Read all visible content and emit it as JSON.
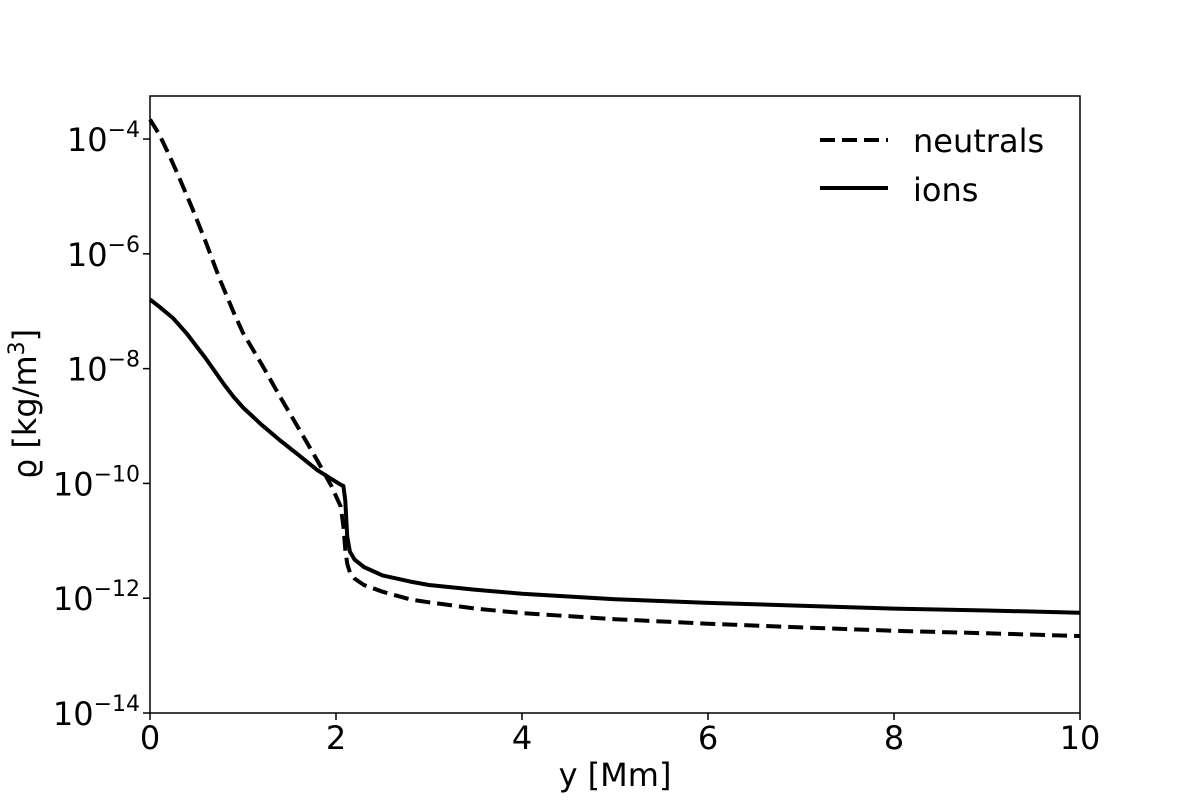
{
  "chart_data": {
    "type": "line",
    "xlabel": "y [Mm]",
    "ylabel_main": "ϱ [kg/m",
    "ylabel_sup": "3",
    "ylabel_close": "]",
    "xlim": [
      0,
      10
    ],
    "ylim_log10": [
      -14,
      -3.25
    ],
    "yscale": "log",
    "grid": false,
    "legend_placement": "top-right",
    "x_ticks": [
      "0",
      "2",
      "4",
      "6",
      "8",
      "10"
    ],
    "y_ticks": [
      {
        "base": "10",
        "exp": "−14",
        "value": -14
      },
      {
        "base": "10",
        "exp": "−12",
        "value": -12
      },
      {
        "base": "10",
        "exp": "−10",
        "value": -10
      },
      {
        "base": "10",
        "exp": "−8",
        "value": -8
      },
      {
        "base": "10",
        "exp": "−6",
        "value": -6
      },
      {
        "base": "10",
        "exp": "−4",
        "value": -4
      }
    ],
    "series": [
      {
        "name": "neutrals",
        "style": "dashed",
        "color": "#000000",
        "x": [
          0,
          0.1,
          0.2,
          0.3,
          0.45,
          0.6,
          0.75,
          0.9,
          1.0,
          1.2,
          1.4,
          1.6,
          1.8,
          1.95,
          2.05,
          2.08,
          2.1,
          2.12,
          2.15,
          2.2,
          2.3,
          2.5,
          2.8,
          3.0,
          3.5,
          4.0,
          5.0,
          6.0,
          7.0,
          8.0,
          9.0,
          10.0
        ],
        "y": [
          0.00022,
          0.00012,
          5.5e-05,
          2.4e-05,
          6.5e-06,
          1.6e-06,
          3.6e-07,
          9.5e-08,
          4.2e-08,
          1.2e-08,
          3.2e-09,
          9e-10,
          2.5e-10,
          9e-11,
          4e-11,
          1.8e-11,
          7e-12,
          4e-12,
          2.8e-12,
          2.2e-12,
          1.7e-12,
          1.3e-12,
          9.5e-13,
          8.5e-13,
          6.6e-13,
          5.5e-13,
          4.3e-13,
          3.6e-13,
          3.1e-13,
          2.7e-13,
          2.45e-13,
          2.2e-13
        ]
      },
      {
        "name": "ions",
        "style": "solid",
        "color": "#000000",
        "x": [
          0,
          0.1,
          0.25,
          0.4,
          0.6,
          0.8,
          0.9,
          1.0,
          1.2,
          1.4,
          1.6,
          1.8,
          1.95,
          2.05,
          2.08,
          2.1,
          2.12,
          2.15,
          2.2,
          2.3,
          2.5,
          2.8,
          3.0,
          3.5,
          4.0,
          5.0,
          6.0,
          7.0,
          8.0,
          9.0,
          10.0
        ],
        "y": [
          1.6e-07,
          1.2e-07,
          7.5e-08,
          4e-08,
          1.5e-08,
          5.2e-09,
          3.2e-09,
          2.1e-09,
          1.05e-09,
          5.6e-10,
          3.1e-10,
          1.7e-10,
          1.2e-10,
          9.5e-11,
          9e-11,
          5e-11,
          1.2e-11,
          6.5e-12,
          4.7e-12,
          3.5e-12,
          2.5e-12,
          1.95e-12,
          1.7e-12,
          1.4e-12,
          1.2e-12,
          9.6e-13,
          8.3e-13,
          7.4e-13,
          6.6e-13,
          6.1e-13,
          5.6e-13
        ]
      }
    ]
  }
}
